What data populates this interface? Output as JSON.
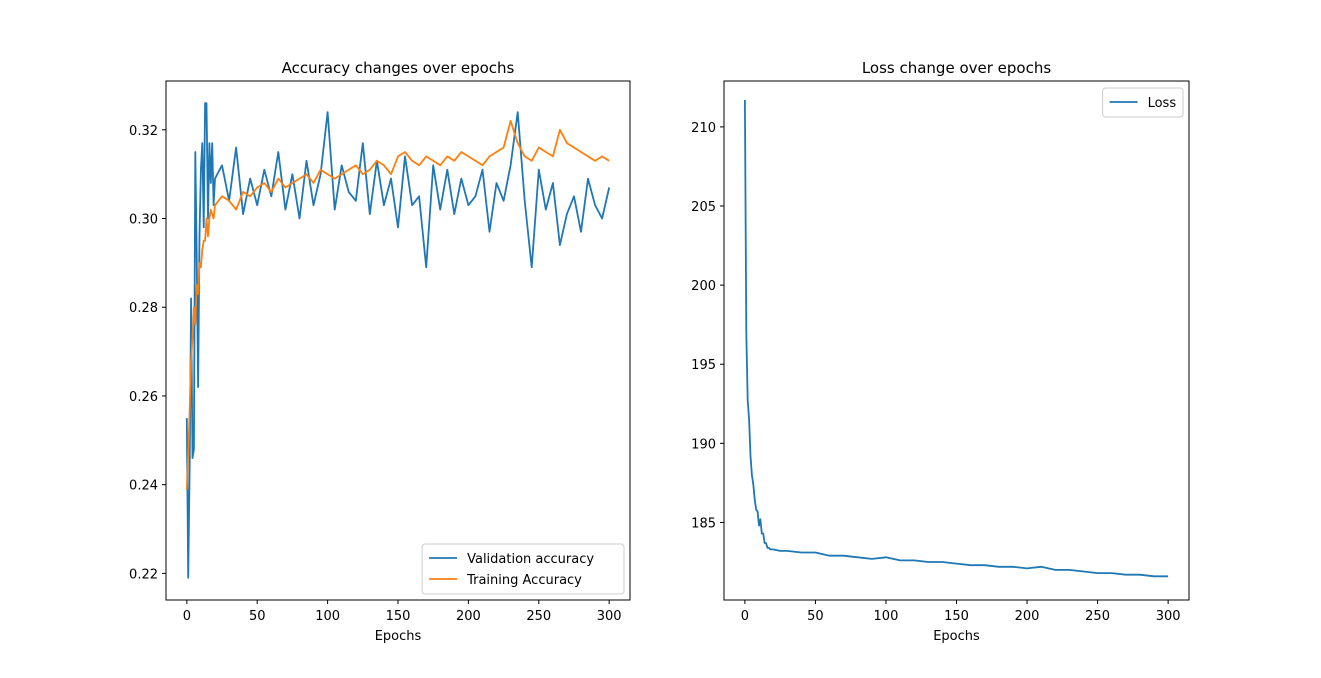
{
  "colors": {
    "validation": "#1f77b4",
    "training": "#ff7f0e",
    "loss": "#1f77b4"
  },
  "chart_data": [
    {
      "type": "line",
      "title": "Accuracy changes over epochs",
      "xlabel": "Epochs",
      "ylabel": "",
      "xlim": [
        -14.8,
        314.8
      ],
      "ylim": [
        0.214,
        0.331
      ],
      "xticks": [
        {
          "value": 0,
          "label": "0"
        },
        {
          "value": 50,
          "label": "50"
        },
        {
          "value": 100,
          "label": "100"
        },
        {
          "value": 150,
          "label": "150"
        },
        {
          "value": 200,
          "label": "200"
        },
        {
          "value": 250,
          "label": "250"
        },
        {
          "value": 300,
          "label": "300"
        }
      ],
      "yticks": [
        {
          "value": 0.22,
          "label": "0.22"
        },
        {
          "value": 0.24,
          "label": "0.24"
        },
        {
          "value": 0.26,
          "label": "0.26"
        },
        {
          "value": 0.28,
          "label": "0.28"
        },
        {
          "value": 0.3,
          "label": "0.30"
        },
        {
          "value": 0.32,
          "label": "0.32"
        }
      ],
      "grid": false,
      "legend_position": "lower right",
      "series": [
        {
          "name": "Validation accuracy",
          "color_key": "validation",
          "x": [
            0,
            1,
            2,
            3,
            4,
            5,
            6,
            7,
            8,
            9,
            10,
            11,
            12,
            13,
            14,
            15,
            16,
            17,
            18,
            19,
            20,
            25,
            30,
            35,
            40,
            45,
            50,
            55,
            60,
            65,
            70,
            75,
            80,
            85,
            90,
            95,
            100,
            105,
            110,
            115,
            120,
            125,
            130,
            135,
            140,
            145,
            150,
            155,
            160,
            165,
            170,
            175,
            180,
            185,
            190,
            195,
            200,
            205,
            210,
            215,
            220,
            225,
            230,
            235,
            240,
            245,
            250,
            255,
            260,
            265,
            270,
            275,
            280,
            285,
            290,
            295,
            300
          ],
          "y": [
            0.255,
            0.219,
            0.245,
            0.282,
            0.246,
            0.248,
            0.315,
            0.292,
            0.262,
            0.296,
            0.311,
            0.317,
            0.298,
            0.326,
            0.326,
            0.3,
            0.317,
            0.308,
            0.317,
            0.303,
            0.309,
            0.312,
            0.304,
            0.316,
            0.301,
            0.309,
            0.303,
            0.311,
            0.305,
            0.315,
            0.302,
            0.31,
            0.3,
            0.313,
            0.303,
            0.31,
            0.324,
            0.302,
            0.312,
            0.306,
            0.304,
            0.317,
            0.301,
            0.313,
            0.303,
            0.309,
            0.298,
            0.314,
            0.303,
            0.305,
            0.289,
            0.312,
            0.302,
            0.311,
            0.301,
            0.309,
            0.303,
            0.305,
            0.311,
            0.297,
            0.308,
            0.304,
            0.312,
            0.324,
            0.304,
            0.289,
            0.311,
            0.302,
            0.308,
            0.294,
            0.301,
            0.305,
            0.297,
            0.309,
            0.303,
            0.3,
            0.307
          ]
        },
        {
          "name": "Training Accuracy",
          "color_key": "training",
          "x": [
            0,
            1,
            2,
            3,
            4,
            5,
            6,
            7,
            8,
            9,
            10,
            11,
            12,
            13,
            14,
            15,
            16,
            17,
            18,
            19,
            20,
            25,
            30,
            35,
            40,
            45,
            50,
            55,
            60,
            65,
            70,
            75,
            80,
            85,
            90,
            95,
            100,
            105,
            110,
            115,
            120,
            125,
            130,
            135,
            140,
            145,
            150,
            155,
            160,
            165,
            170,
            175,
            180,
            185,
            190,
            195,
            200,
            205,
            210,
            215,
            220,
            225,
            230,
            235,
            240,
            245,
            250,
            255,
            260,
            265,
            270,
            275,
            280,
            285,
            290,
            295,
            300
          ],
          "y": [
            0.239,
            0.247,
            0.257,
            0.268,
            0.273,
            0.28,
            0.276,
            0.285,
            0.283,
            0.29,
            0.289,
            0.293,
            0.295,
            0.295,
            0.3,
            0.296,
            0.3,
            0.302,
            0.301,
            0.3,
            0.303,
            0.305,
            0.304,
            0.302,
            0.306,
            0.305,
            0.307,
            0.308,
            0.306,
            0.309,
            0.307,
            0.308,
            0.309,
            0.31,
            0.308,
            0.311,
            0.31,
            0.309,
            0.31,
            0.311,
            0.312,
            0.31,
            0.311,
            0.313,
            0.312,
            0.31,
            0.314,
            0.315,
            0.313,
            0.312,
            0.314,
            0.313,
            0.312,
            0.314,
            0.313,
            0.315,
            0.314,
            0.313,
            0.312,
            0.314,
            0.315,
            0.316,
            0.322,
            0.317,
            0.314,
            0.313,
            0.316,
            0.315,
            0.314,
            0.32,
            0.317,
            0.316,
            0.315,
            0.314,
            0.313,
            0.314,
            0.313
          ]
        }
      ]
    },
    {
      "type": "line",
      "title": "Loss change over epochs",
      "xlabel": "Epochs",
      "ylabel": "",
      "xlim": [
        -14.8,
        314.8
      ],
      "ylim": [
        180.1,
        212.9
      ],
      "xticks": [
        {
          "value": 0,
          "label": "0"
        },
        {
          "value": 50,
          "label": "50"
        },
        {
          "value": 100,
          "label": "100"
        },
        {
          "value": 150,
          "label": "150"
        },
        {
          "value": 200,
          "label": "200"
        },
        {
          "value": 250,
          "label": "250"
        },
        {
          "value": 300,
          "label": "300"
        }
      ],
      "yticks": [
        {
          "value": 185,
          "label": "185"
        },
        {
          "value": 190,
          "label": "190"
        },
        {
          "value": 195,
          "label": "195"
        },
        {
          "value": 200,
          "label": "200"
        },
        {
          "value": 205,
          "label": "205"
        },
        {
          "value": 210,
          "label": "210"
        }
      ],
      "grid": false,
      "legend_position": "upper right",
      "series": [
        {
          "name": "Loss",
          "color_key": "loss",
          "x": [
            0,
            1,
            2,
            3,
            4,
            5,
            6,
            7,
            8,
            9,
            10,
            11,
            12,
            13,
            14,
            15,
            16,
            17,
            18,
            19,
            20,
            25,
            30,
            40,
            50,
            60,
            70,
            80,
            90,
            100,
            110,
            120,
            130,
            140,
            150,
            160,
            170,
            180,
            190,
            200,
            210,
            220,
            230,
            240,
            250,
            260,
            270,
            280,
            290,
            300
          ],
          "y": [
            211.7,
            197.0,
            192.7,
            191.5,
            189.2,
            188.0,
            187.4,
            186.4,
            185.8,
            185.7,
            184.8,
            185.2,
            184.3,
            184.3,
            183.7,
            183.7,
            183.4,
            183.4,
            183.3,
            183.3,
            183.3,
            183.2,
            183.2,
            183.1,
            183.1,
            182.9,
            182.9,
            182.8,
            182.7,
            182.8,
            182.6,
            182.6,
            182.5,
            182.5,
            182.4,
            182.3,
            182.3,
            182.2,
            182.2,
            182.1,
            182.2,
            182.0,
            182.0,
            181.9,
            181.8,
            181.8,
            181.7,
            181.7,
            181.6,
            181.6
          ]
        }
      ]
    }
  ]
}
